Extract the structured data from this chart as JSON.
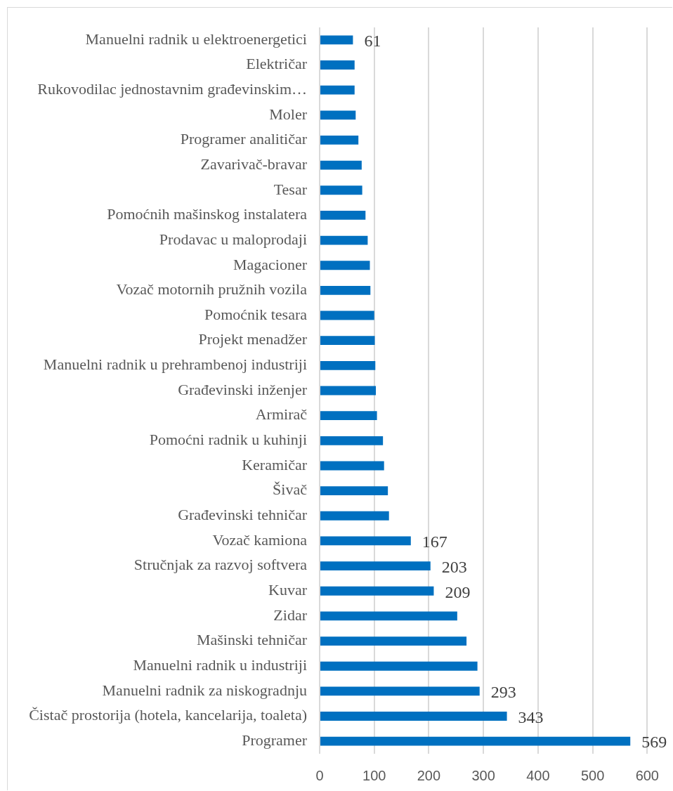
{
  "chart_data": {
    "type": "bar",
    "orientation": "horizontal",
    "categories": [
      "Manuelni radnik u elektroenergetici",
      "Električar",
      "Rukovodilac jednostavnim građevinskim…",
      "Moler",
      "Programer analitičar",
      "Zavarivač-bravar",
      "Tesar",
      "Pomoćnih mašinskog instalatera",
      "Prodavac u maloprodaji",
      "Magacioner",
      "Vozač motornih pružnih vozila",
      "Pomoćnik tesara",
      "Projekt menadžer",
      "Manuelni radnik u prehrambenoj industriji",
      "Građevinski inženjer",
      "Armirač",
      "Pomoćni radnik u kuhinji",
      "Keramičar",
      "Šivač",
      "Građevinski tehničar",
      "Vozač kamiona",
      "Stručnjak za razvoj softvera",
      "Kuvar",
      "Zidar",
      "Mašinski tehničar",
      "Manuelni radnik u industriji",
      "Manuelni radnik za niskogradnju",
      "Čistač prostorija (hotela, kancelarija, toaleta)",
      "Programer"
    ],
    "values": [
      61,
      64,
      64,
      66,
      71,
      77,
      78,
      84,
      88,
      92,
      93,
      100,
      101,
      102,
      103,
      105,
      116,
      118,
      125,
      127,
      167,
      203,
      209,
      252,
      269,
      289,
      293,
      343,
      569
    ],
    "value_labels": [
      "61",
      null,
      null,
      null,
      null,
      null,
      null,
      null,
      null,
      null,
      null,
      null,
      null,
      null,
      null,
      null,
      null,
      null,
      null,
      null,
      "167",
      "203",
      "209",
      null,
      null,
      null,
      "293",
      "343",
      "569"
    ],
    "color": "#0070c0",
    "xlim": [
      0,
      600
    ],
    "xticks": [
      0,
      100,
      200,
      300,
      400,
      500,
      600
    ],
    "grid": "x"
  }
}
